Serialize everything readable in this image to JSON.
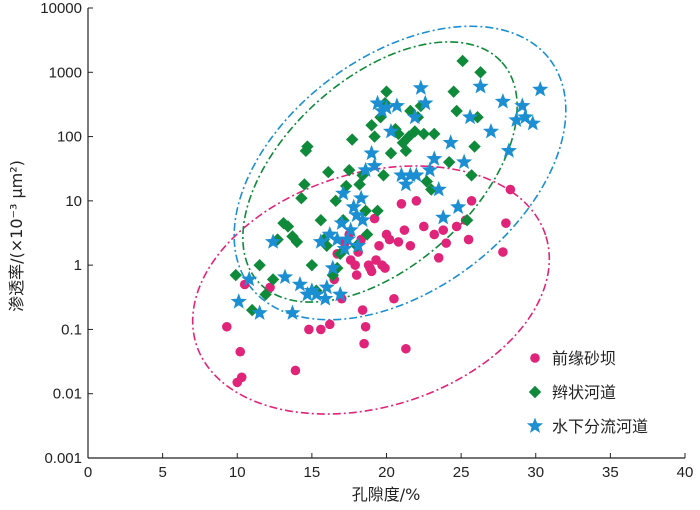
{
  "chart_data": {
    "type": "scatter",
    "title": "",
    "xlabel": "孔隙度/%",
    "ylabel": "渗透率/(×10⁻³ μm²)",
    "xlim": [
      0,
      40
    ],
    "ylim": [
      0.001,
      10000
    ],
    "yscale": "log",
    "grid": false,
    "legend_position": "bottom-right",
    "x_ticks": [
      "0",
      "5",
      "10",
      "15",
      "20",
      "25",
      "30",
      "35",
      "40"
    ],
    "y_ticks": [
      "0.001",
      "0.01",
      "0.1",
      "1",
      "10",
      "100",
      "1000",
      "10000"
    ],
    "series": [
      {
        "name": "前缘砂坝",
        "marker": "circle",
        "color": "#e0247a",
        "points": [
          [
            9.3,
            0.11
          ],
          [
            10,
            0.015
          ],
          [
            10.2,
            0.045
          ],
          [
            10.3,
            0.018
          ],
          [
            10.5,
            0.5
          ],
          [
            12.2,
            0.45
          ],
          [
            13.9,
            0.023
          ],
          [
            14.8,
            0.1
          ],
          [
            15.6,
            0.1
          ],
          [
            16.2,
            0.12
          ],
          [
            16.5,
            0.6
          ],
          [
            16.7,
            1.5
          ],
          [
            17,
            0.3
          ],
          [
            17.2,
            2.2
          ],
          [
            17.5,
            3
          ],
          [
            17.6,
            1.2
          ],
          [
            17.9,
            1
          ],
          [
            18,
            0.7
          ],
          [
            18.1,
            1.6
          ],
          [
            18.3,
            2.5
          ],
          [
            18.4,
            0.2
          ],
          [
            18.5,
            0.06
          ],
          [
            18.6,
            0.11
          ],
          [
            18.8,
            1
          ],
          [
            18.9,
            0.9
          ],
          [
            19,
            0.8
          ],
          [
            19.2,
            5.3
          ],
          [
            19.3,
            1.2
          ],
          [
            19.5,
            2
          ],
          [
            19.7,
            1
          ],
          [
            19.9,
            0.9
          ],
          [
            20,
            3
          ],
          [
            20.2,
            2.5
          ],
          [
            20.5,
            0.3
          ],
          [
            20.8,
            2.3
          ],
          [
            21,
            9
          ],
          [
            21.2,
            3.5
          ],
          [
            21.3,
            0.05
          ],
          [
            21.6,
            2
          ],
          [
            22,
            10
          ],
          [
            22.5,
            4
          ],
          [
            23.2,
            3
          ],
          [
            23.5,
            1.3
          ],
          [
            23.8,
            3.5
          ],
          [
            24,
            2.2
          ],
          [
            24.7,
            4
          ],
          [
            25.3,
            5
          ],
          [
            25.5,
            2.5
          ],
          [
            25.7,
            10
          ],
          [
            27.8,
            1.6
          ],
          [
            28,
            4.5
          ],
          [
            28.3,
            15
          ]
        ]
      },
      {
        "name": "辫状河道",
        "marker": "diamond",
        "color": "#0e8a3a",
        "points": [
          [
            9.9,
            0.7
          ],
          [
            11,
            0.2
          ],
          [
            11.5,
            1
          ],
          [
            11.9,
            0.35
          ],
          [
            12.4,
            0.6
          ],
          [
            12.7,
            2.5
          ],
          [
            13.1,
            4.5
          ],
          [
            13.4,
            4
          ],
          [
            13.7,
            2.8
          ],
          [
            14,
            2.3
          ],
          [
            14.3,
            11
          ],
          [
            14.5,
            18
          ],
          [
            14.6,
            60
          ],
          [
            14.7,
            70
          ],
          [
            15,
            1
          ],
          [
            15.3,
            0.4
          ],
          [
            15.6,
            5
          ],
          [
            15.8,
            2.5
          ],
          [
            16,
            2
          ],
          [
            16.1,
            28
          ],
          [
            16.4,
            0.7
          ],
          [
            16.6,
            10
          ],
          [
            16.7,
            0.9
          ],
          [
            16.9,
            1.5
          ],
          [
            17.1,
            5
          ],
          [
            17.3,
            17
          ],
          [
            17.5,
            30
          ],
          [
            17.7,
            90
          ],
          [
            18,
            2
          ],
          [
            18.2,
            18
          ],
          [
            18.4,
            25
          ],
          [
            18.6,
            7
          ],
          [
            18.7,
            3
          ],
          [
            19,
            150
          ],
          [
            19.2,
            100
          ],
          [
            19.4,
            7
          ],
          [
            19.6,
            200
          ],
          [
            19.8,
            25
          ],
          [
            19.9,
            330
          ],
          [
            20,
            500
          ],
          [
            20.3,
            55
          ],
          [
            20.6,
            130
          ],
          [
            20.8,
            110
          ],
          [
            21.1,
            80
          ],
          [
            21.3,
            60
          ],
          [
            21.5,
            100
          ],
          [
            21.6,
            250
          ],
          [
            21.9,
            120
          ],
          [
            22.1,
            200
          ],
          [
            22.3,
            300
          ],
          [
            22.5,
            110
          ],
          [
            22.7,
            20
          ],
          [
            23,
            15
          ],
          [
            23.2,
            110
          ],
          [
            24.2,
            40
          ],
          [
            24.5,
            500
          ],
          [
            24.7,
            250
          ],
          [
            25.1,
            1500
          ],
          [
            25.4,
            5
          ],
          [
            25.7,
            25
          ],
          [
            25.9,
            70
          ],
          [
            26.3,
            1000
          ],
          [
            26.1,
            200
          ]
        ]
      },
      {
        "name": "水下分流河道",
        "marker": "star",
        "color": "#1b8fd2",
        "points": [
          [
            10.1,
            0.27
          ],
          [
            10.8,
            0.6
          ],
          [
            11.5,
            0.18
          ],
          [
            12.4,
            2.3
          ],
          [
            13.2,
            0.65
          ],
          [
            13.7,
            0.18
          ],
          [
            14.2,
            0.5
          ],
          [
            14.7,
            0.35
          ],
          [
            15,
            0.4
          ],
          [
            15.3,
            0.35
          ],
          [
            15.6,
            2.3
          ],
          [
            15.9,
            0.3
          ],
          [
            16,
            0.45
          ],
          [
            16.2,
            3
          ],
          [
            16.4,
            0.9
          ],
          [
            16.7,
            2.5
          ],
          [
            16.9,
            0.35
          ],
          [
            17,
            4.5
          ],
          [
            17.1,
            13
          ],
          [
            17.2,
            1.8
          ],
          [
            17.4,
            2.5
          ],
          [
            17.6,
            3.5
          ],
          [
            17.8,
            8
          ],
          [
            18,
            6
          ],
          [
            18.1,
            2
          ],
          [
            18.3,
            11
          ],
          [
            18.4,
            5
          ],
          [
            18.6,
            30
          ],
          [
            19,
            55
          ],
          [
            19.2,
            35
          ],
          [
            19.4,
            330
          ],
          [
            19.7,
            250
          ],
          [
            20,
            280
          ],
          [
            20.3,
            120
          ],
          [
            20.7,
            300
          ],
          [
            21,
            25
          ],
          [
            21.3,
            18
          ],
          [
            21.6,
            25
          ],
          [
            21.9,
            200
          ],
          [
            22,
            25
          ],
          [
            22.3,
            570
          ],
          [
            22.6,
            330
          ],
          [
            22.9,
            30
          ],
          [
            23.2,
            45
          ],
          [
            23.5,
            15
          ],
          [
            23.8,
            5.5
          ],
          [
            24.3,
            80
          ],
          [
            24.8,
            8
          ],
          [
            25.2,
            40
          ],
          [
            25.6,
            200
          ],
          [
            26.3,
            600
          ],
          [
            27,
            120
          ],
          [
            27.8,
            350
          ],
          [
            28.2,
            60
          ],
          [
            28.7,
            180
          ],
          [
            29.1,
            300
          ],
          [
            29.3,
            200
          ],
          [
            29.8,
            160
          ],
          [
            30.3,
            540
          ]
        ]
      }
    ],
    "ellipses": [
      {
        "series": "前缘砂坝",
        "color": "#e0247a"
      },
      {
        "series": "辫状河道",
        "color": "#0e8a3a"
      },
      {
        "series": "水下分流河道",
        "color": "#1b8fd2"
      }
    ]
  }
}
